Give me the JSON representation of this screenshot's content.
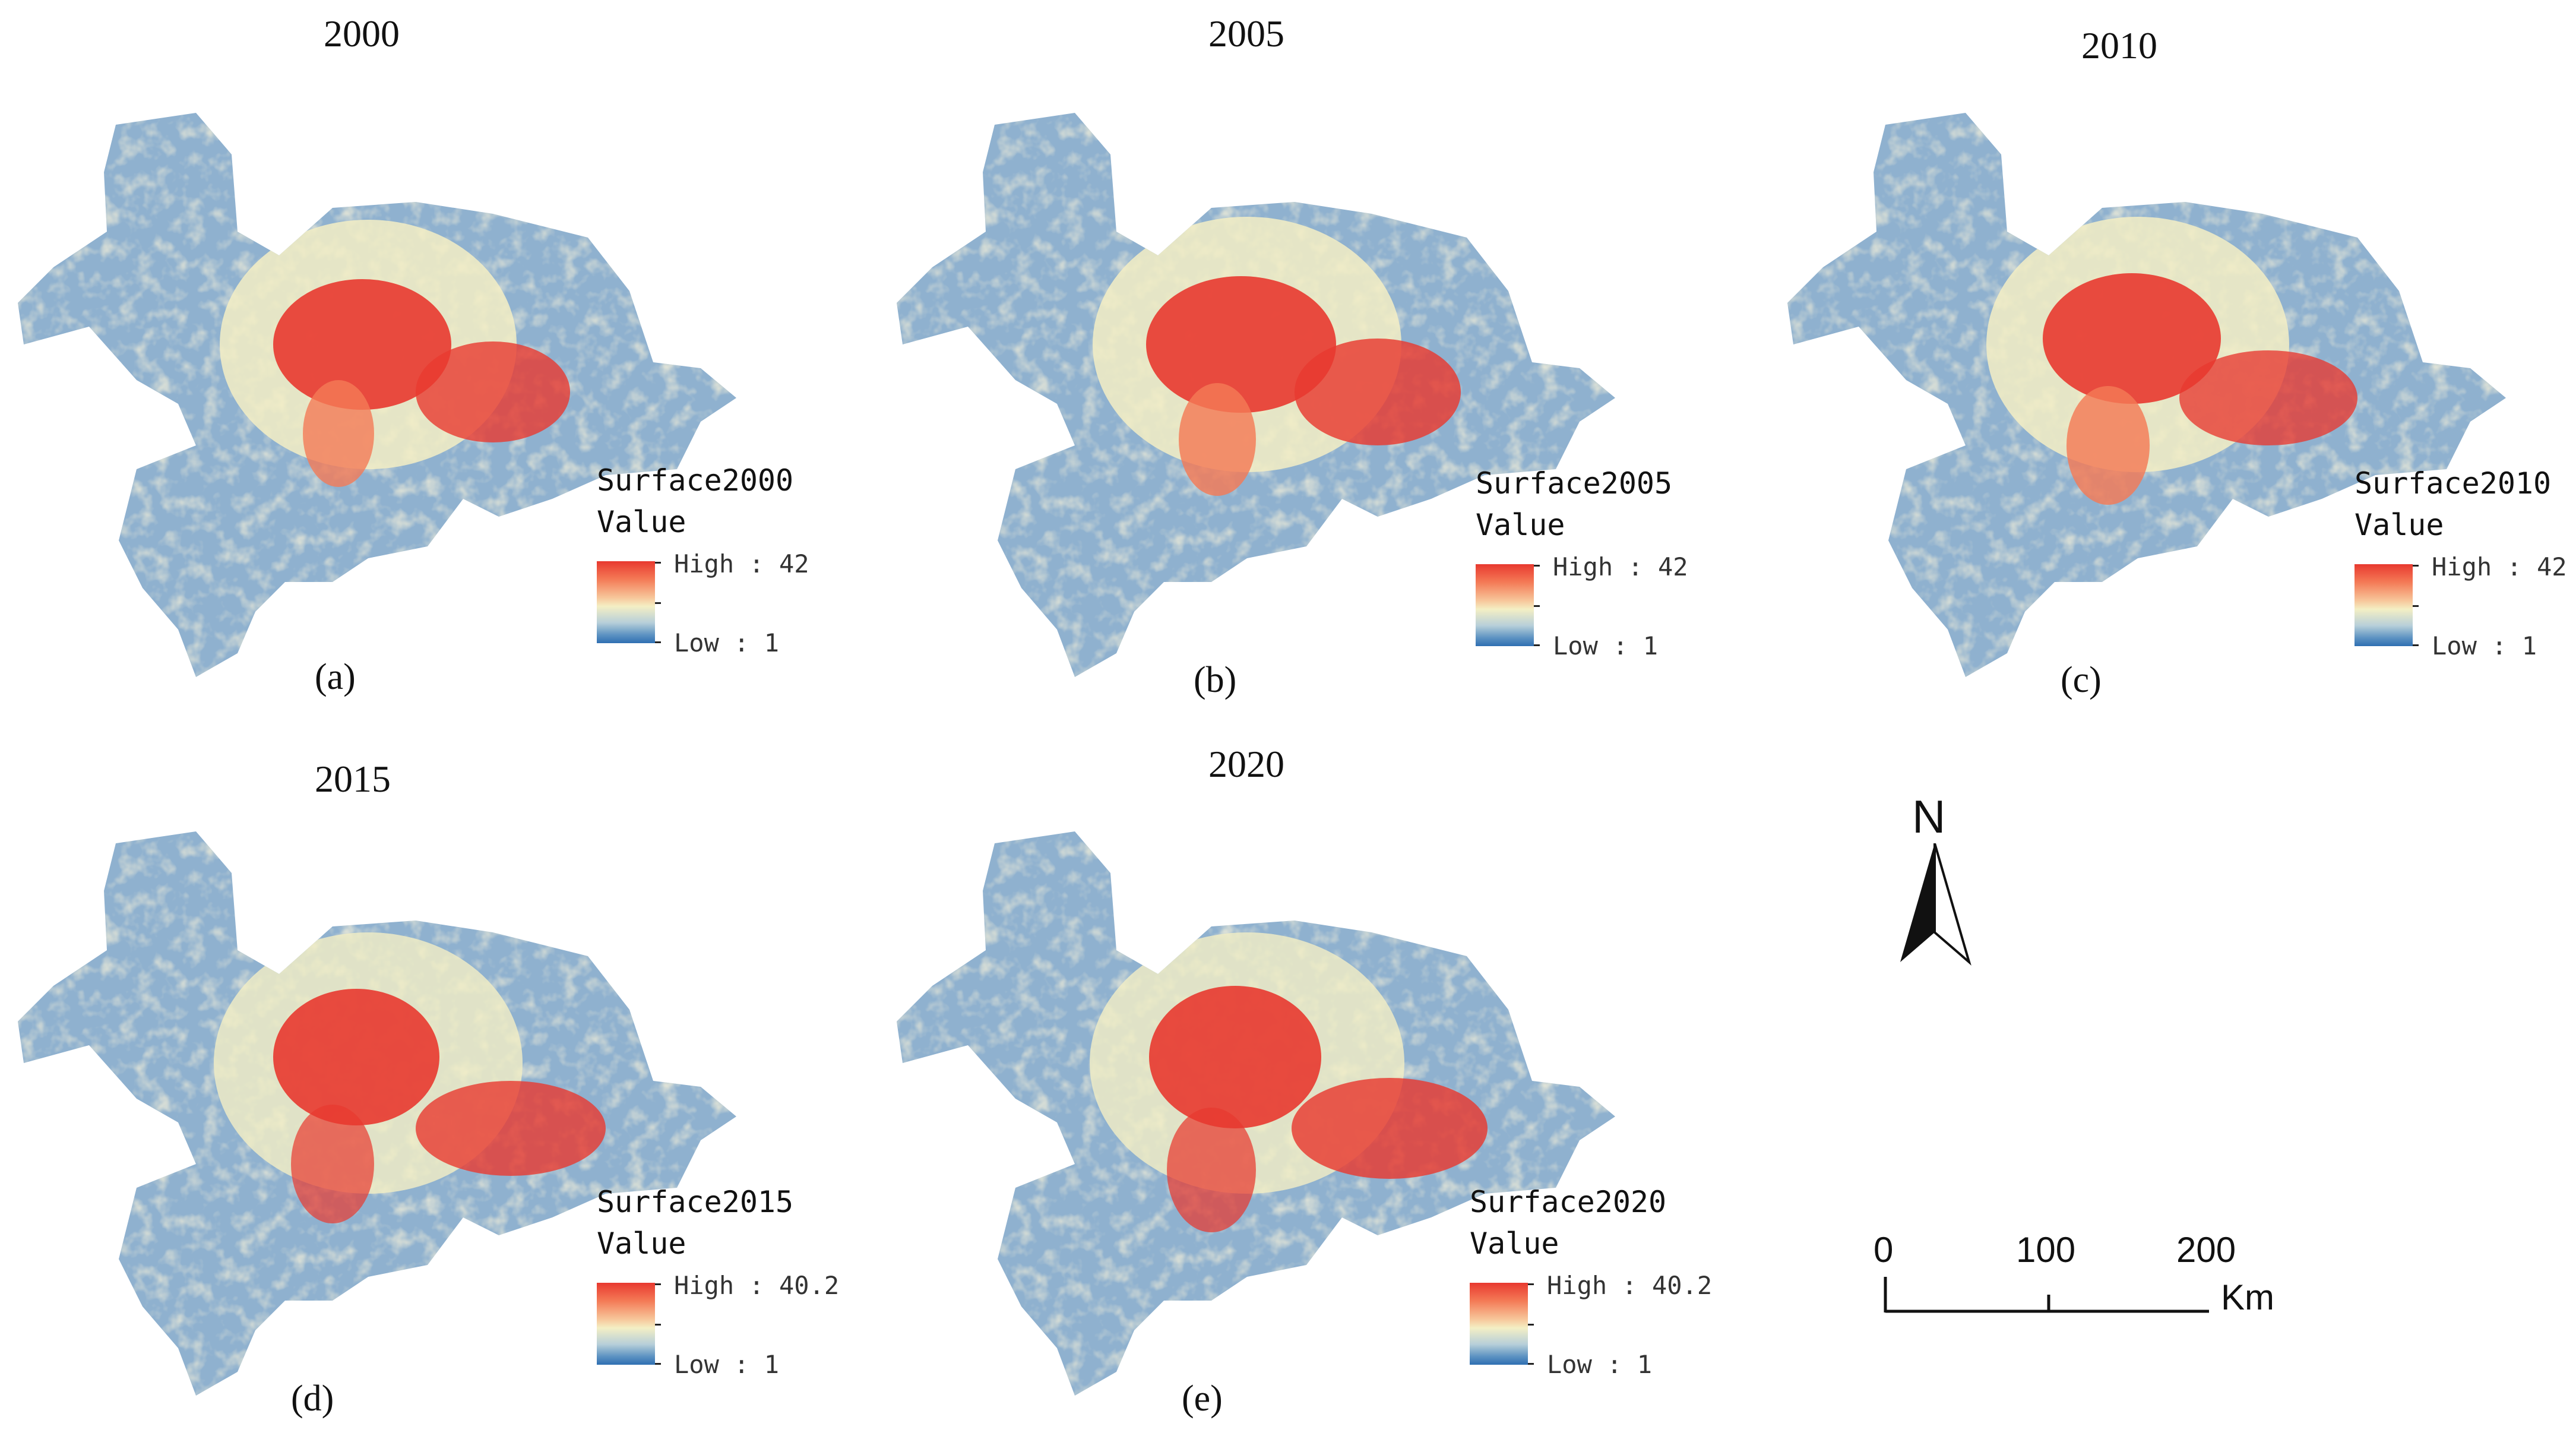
{
  "colors": {
    "high": "#e8392f",
    "mid": "#f4efc4",
    "low": "#2f6fb2",
    "base": "#8fb1cf"
  },
  "panels": [
    {
      "year": "2000",
      "label": "(a)",
      "legend_title": "Surface2000",
      "legend_value": "Value",
      "high": "High : 42",
      "low": "Low : 1"
    },
    {
      "year": "2005",
      "label": "(b)",
      "legend_title": "Surface2005",
      "legend_value": "Value",
      "high": "High : 42",
      "low": "Low : 1"
    },
    {
      "year": "2010",
      "label": "(c)",
      "legend_title": "Surface2010",
      "legend_value": "Value",
      "high": "High : 42",
      "low": "Low : 1"
    },
    {
      "year": "2015",
      "label": "(d)",
      "legend_title": "Surface2015",
      "legend_value": "Value",
      "high": "High : 40.2",
      "low": "Low : 1"
    },
    {
      "year": "2020",
      "label": "(e)",
      "legend_title": "Surface2020",
      "legend_value": "Value",
      "high": "High : 40.2",
      "low": "Low : 1"
    }
  ],
  "north_arrow": {
    "label": "N"
  },
  "scale_bar": {
    "ticks": [
      "0",
      "100",
      "200"
    ],
    "unit": "Km"
  }
}
